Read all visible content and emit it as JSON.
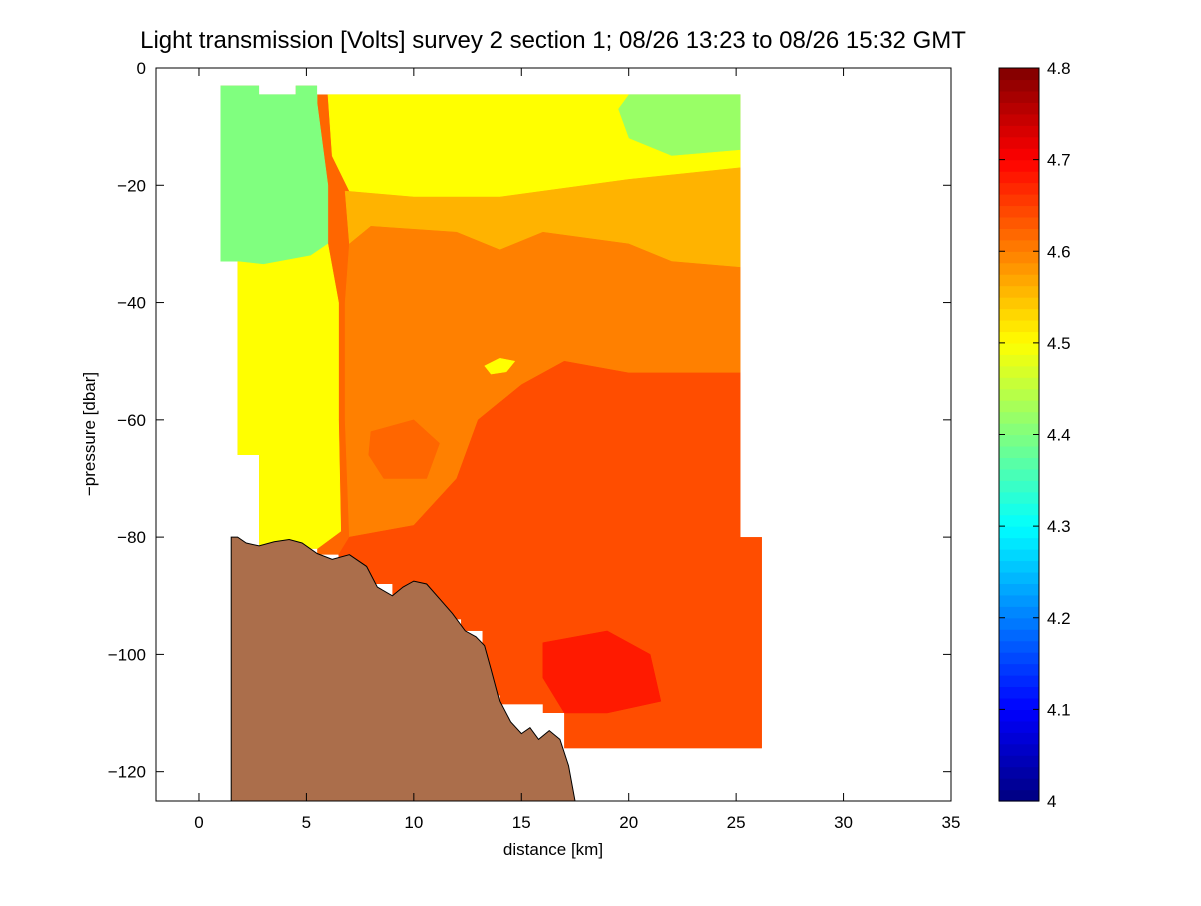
{
  "chart_data": {
    "type": "heatmap",
    "title": "Light transmission [Volts] survey 2 section 1; 08/26 13:23 to 08/26 15:32 GMT",
    "xlabel": "distance [km]",
    "ylabel": "−pressure [dbar]",
    "xlim": [
      -2,
      35
    ],
    "ylim": [
      -125,
      0
    ],
    "x_ticks": [
      0,
      5,
      10,
      15,
      20,
      25,
      30,
      35
    ],
    "y_ticks": [
      0,
      -20,
      -40,
      -60,
      -80,
      -100,
      -120
    ],
    "x_tick_labels": [
      "0",
      "5",
      "10",
      "15",
      "20",
      "25",
      "30",
      "35"
    ],
    "y_tick_labels": [
      "0",
      "−20",
      "−40",
      "−60",
      "−80",
      "−100",
      "−120"
    ],
    "colorbar": {
      "range": [
        4.0,
        4.8
      ],
      "ticks": [
        4.0,
        4.1,
        4.2,
        4.3,
        4.4,
        4.5,
        4.6,
        4.7,
        4.8
      ],
      "tick_labels": [
        "4",
        "4.1",
        "4.2",
        "4.3",
        "4.4",
        "4.5",
        "4.6",
        "4.7",
        "4.8"
      ],
      "colormap": "jet"
    },
    "grid": false,
    "data_mask": [
      [
        1.0,
        -3.0
      ],
      [
        2.8,
        -3.0
      ],
      [
        2.8,
        -4.5
      ],
      [
        4.5,
        -4.5
      ],
      [
        4.5,
        -3.0
      ],
      [
        5.5,
        -3.0
      ],
      [
        5.5,
        -4.5
      ],
      [
        25.2,
        -4.5
      ],
      [
        25.2,
        -80.0
      ],
      [
        26.2,
        -80.0
      ],
      [
        26.2,
        -116.0
      ],
      [
        17.0,
        -116.0
      ],
      [
        17.0,
        -110.0
      ],
      [
        16.0,
        -110.0
      ],
      [
        16.0,
        -108.5
      ],
      [
        14.0,
        -108.5
      ],
      [
        14.0,
        -107.0
      ],
      [
        13.2,
        -107.0
      ],
      [
        13.2,
        -96.0
      ],
      [
        12.2,
        -96.0
      ],
      [
        12.2,
        -94.0
      ],
      [
        11.2,
        -94.0
      ],
      [
        11.2,
        -91.0
      ],
      [
        9.0,
        -91.0
      ],
      [
        9.0,
        -88.0
      ],
      [
        7.5,
        -88.0
      ],
      [
        7.5,
        -86.5
      ],
      [
        6.5,
        -86.5
      ],
      [
        6.5,
        -83.0
      ],
      [
        5.5,
        -83.0
      ],
      [
        5.5,
        -82.0
      ],
      [
        2.8,
        -82.0
      ],
      [
        2.8,
        -66.0
      ],
      [
        1.8,
        -66.0
      ],
      [
        1.8,
        -33.0
      ],
      [
        1.0,
        -33.0
      ]
    ],
    "bathymetry": [
      [
        1.5,
        -80.0
      ],
      [
        1.8,
        -80.0
      ],
      [
        2.2,
        -81.0
      ],
      [
        2.8,
        -81.5
      ],
      [
        3.5,
        -80.8
      ],
      [
        4.2,
        -80.4
      ],
      [
        4.8,
        -81.0
      ],
      [
        5.5,
        -82.8
      ],
      [
        6.2,
        -83.8
      ],
      [
        7.0,
        -83.0
      ],
      [
        7.8,
        -85.0
      ],
      [
        8.3,
        -88.5
      ],
      [
        9.0,
        -90.0
      ],
      [
        9.5,
        -88.5
      ],
      [
        10.0,
        -87.5
      ],
      [
        10.6,
        -88.0
      ],
      [
        11.2,
        -90.5
      ],
      [
        11.8,
        -93.0
      ],
      [
        12.4,
        -96.0
      ],
      [
        12.9,
        -97.0
      ],
      [
        13.3,
        -98.5
      ],
      [
        13.6,
        -102.5
      ],
      [
        14.0,
        -108.0
      ],
      [
        14.5,
        -111.5
      ],
      [
        15.0,
        -113.5
      ],
      [
        15.4,
        -112.5
      ],
      [
        15.8,
        -114.5
      ],
      [
        16.3,
        -113.0
      ],
      [
        16.8,
        -114.5
      ],
      [
        17.2,
        -119.0
      ],
      [
        17.5,
        -125.0
      ],
      [
        1.5,
        -125.0
      ]
    ],
    "field_regions": [
      {
        "value": 4.4,
        "polygon": [
          [
            1.0,
            -3.0
          ],
          [
            5.5,
            -3.0
          ],
          [
            5.5,
            -6.0
          ],
          [
            6.0,
            -20.0
          ],
          [
            6.0,
            -30.0
          ],
          [
            5.2,
            -32.0
          ],
          [
            3.0,
            -33.5
          ],
          [
            1.8,
            -33.0
          ],
          [
            1.0,
            -33.0
          ]
        ]
      },
      {
        "value": 4.42,
        "polygon": [
          [
            20.0,
            -4.5
          ],
          [
            25.2,
            -4.5
          ],
          [
            25.2,
            -14.0
          ],
          [
            22.0,
            -15.0
          ],
          [
            20.0,
            -12.0
          ],
          [
            19.5,
            -7.0
          ]
        ]
      },
      {
        "value": 4.5,
        "polygon": [
          [
            1.8,
            -33.0
          ],
          [
            3.0,
            -33.5
          ],
          [
            5.2,
            -32.0
          ],
          [
            6.0,
            -30.0
          ],
          [
            6.5,
            -40.0
          ],
          [
            6.5,
            -60.0
          ],
          [
            6.6,
            -79.0
          ],
          [
            5.5,
            -82.0
          ],
          [
            2.8,
            -82.0
          ],
          [
            2.8,
            -66.0
          ],
          [
            1.8,
            -66.0
          ]
        ]
      },
      {
        "value": 4.5,
        "polygon": [
          [
            6.0,
            -4.5
          ],
          [
            20.0,
            -4.5
          ],
          [
            19.5,
            -7.0
          ],
          [
            20.0,
            -12.0
          ],
          [
            22.0,
            -15.0
          ],
          [
            25.2,
            -14.0
          ],
          [
            25.2,
            -17.0
          ],
          [
            20.0,
            -19.0
          ],
          [
            14.0,
            -22.0
          ],
          [
            10.0,
            -22.0
          ],
          [
            7.0,
            -21.0
          ],
          [
            6.2,
            -15.0
          ]
        ]
      },
      {
        "value": 4.56,
        "polygon": [
          [
            6.8,
            -21.0
          ],
          [
            10.0,
            -22.0
          ],
          [
            14.0,
            -22.0
          ],
          [
            20.0,
            -19.0
          ],
          [
            25.2,
            -17.0
          ],
          [
            25.2,
            -34.0
          ],
          [
            22.0,
            -33.0
          ],
          [
            20.0,
            -30.0
          ],
          [
            16.0,
            -28.0
          ],
          [
            14.0,
            -31.0
          ],
          [
            12.0,
            -28.0
          ],
          [
            8.0,
            -27.0
          ],
          [
            7.0,
            -30.0
          ]
        ]
      },
      {
        "value": 4.6,
        "polygon": [
          [
            7.0,
            -30.0
          ],
          [
            8.0,
            -27.0
          ],
          [
            12.0,
            -28.0
          ],
          [
            14.0,
            -31.0
          ],
          [
            16.0,
            -28.0
          ],
          [
            20.0,
            -30.0
          ],
          [
            22.0,
            -33.0
          ],
          [
            25.2,
            -34.0
          ],
          [
            25.2,
            -52.0
          ],
          [
            20.0,
            -52.0
          ],
          [
            17.0,
            -50.0
          ],
          [
            15.0,
            -54.0
          ],
          [
            13.0,
            -60.0
          ],
          [
            12.0,
            -70.0
          ],
          [
            10.0,
            -78.0
          ],
          [
            7.0,
            -80.0
          ],
          [
            6.8,
            -60.0
          ],
          [
            6.8,
            -40.0
          ]
        ]
      },
      {
        "value": 4.64,
        "polygon": [
          [
            13.0,
            -60.0
          ],
          [
            15.0,
            -54.0
          ],
          [
            17.0,
            -50.0
          ],
          [
            20.0,
            -52.0
          ],
          [
            25.2,
            -52.0
          ],
          [
            25.2,
            -80.0
          ],
          [
            26.2,
            -80.0
          ],
          [
            26.2,
            -116.0
          ],
          [
            17.0,
            -116.0
          ],
          [
            17.0,
            -110.0
          ],
          [
            16.0,
            -110.0
          ],
          [
            16.0,
            -108.5
          ],
          [
            14.0,
            -108.5
          ],
          [
            14.0,
            -107.0
          ],
          [
            13.2,
            -107.0
          ],
          [
            13.2,
            -96.0
          ],
          [
            12.2,
            -96.0
          ],
          [
            12.2,
            -94.0
          ],
          [
            11.2,
            -94.0
          ],
          [
            11.2,
            -91.0
          ],
          [
            9.0,
            -91.0
          ],
          [
            9.0,
            -88.0
          ],
          [
            7.5,
            -88.0
          ],
          [
            7.5,
            -86.5
          ],
          [
            6.5,
            -86.5
          ],
          [
            6.5,
            -83.0
          ],
          [
            7.0,
            -80.0
          ],
          [
            10.0,
            -78.0
          ],
          [
            12.0,
            -70.0
          ]
        ]
      },
      {
        "value": 4.68,
        "polygon": [
          [
            16.0,
            -98.0
          ],
          [
            19.0,
            -96.0
          ],
          [
            21.0,
            -100.0
          ],
          [
            21.5,
            -108.0
          ],
          [
            19.0,
            -110.0
          ],
          [
            17.0,
            -110.0
          ],
          [
            16.0,
            -104.0
          ]
        ]
      },
      {
        "value": 4.62,
        "polygon": [
          [
            8.0,
            -62.0
          ],
          [
            10.0,
            -60.0
          ],
          [
            11.2,
            -64.0
          ],
          [
            10.6,
            -70.0
          ],
          [
            8.6,
            -70.0
          ],
          [
            7.9,
            -66.0
          ]
        ]
      },
      {
        "value": 4.5,
        "polygon": [
          [
            13.3,
            -50.8
          ],
          [
            14.0,
            -49.5
          ],
          [
            14.7,
            -50.0
          ],
          [
            14.3,
            -51.8
          ],
          [
            13.6,
            -52.2
          ]
        ]
      }
    ]
  }
}
